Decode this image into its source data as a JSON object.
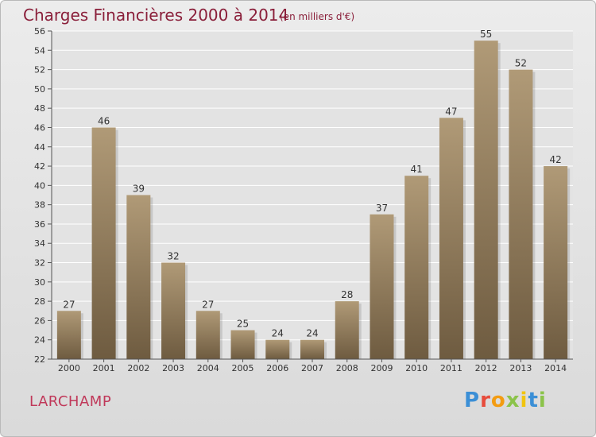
{
  "title": "Charges Financières 2000 à 2014",
  "subtitle": "(en milliers d'€)",
  "commune": "LARCHAMP",
  "logo": {
    "letters": [
      "P",
      "r",
      "o",
      "x",
      "i",
      "t",
      "i"
    ],
    "colors": [
      "#3b8fd6",
      "#e74c3c",
      "#f39c12",
      "#8bc34a",
      "#f1c40f",
      "#3b8fd6",
      "#8bc34a"
    ]
  },
  "colors": {
    "bar": "#8f7b5c",
    "bar_light": "#b09a77",
    "bar_dark": "#6e5b40",
    "grid": "#ffffff",
    "text": "#333333"
  },
  "chart_data": {
    "type": "bar",
    "categories": [
      "2000",
      "2001",
      "2002",
      "2003",
      "2004",
      "2005",
      "2006",
      "2007",
      "2008",
      "2009",
      "2010",
      "2011",
      "2012",
      "2013",
      "2014"
    ],
    "values": [
      27,
      46,
      39,
      32,
      27,
      25,
      24,
      24,
      28,
      37,
      41,
      47,
      55,
      52,
      42
    ],
    "ylim": [
      22,
      56
    ],
    "yticks": [
      22,
      24,
      26,
      28,
      30,
      32,
      34,
      36,
      38,
      40,
      42,
      44,
      46,
      48,
      50,
      52,
      54,
      56
    ],
    "grid": true
  }
}
